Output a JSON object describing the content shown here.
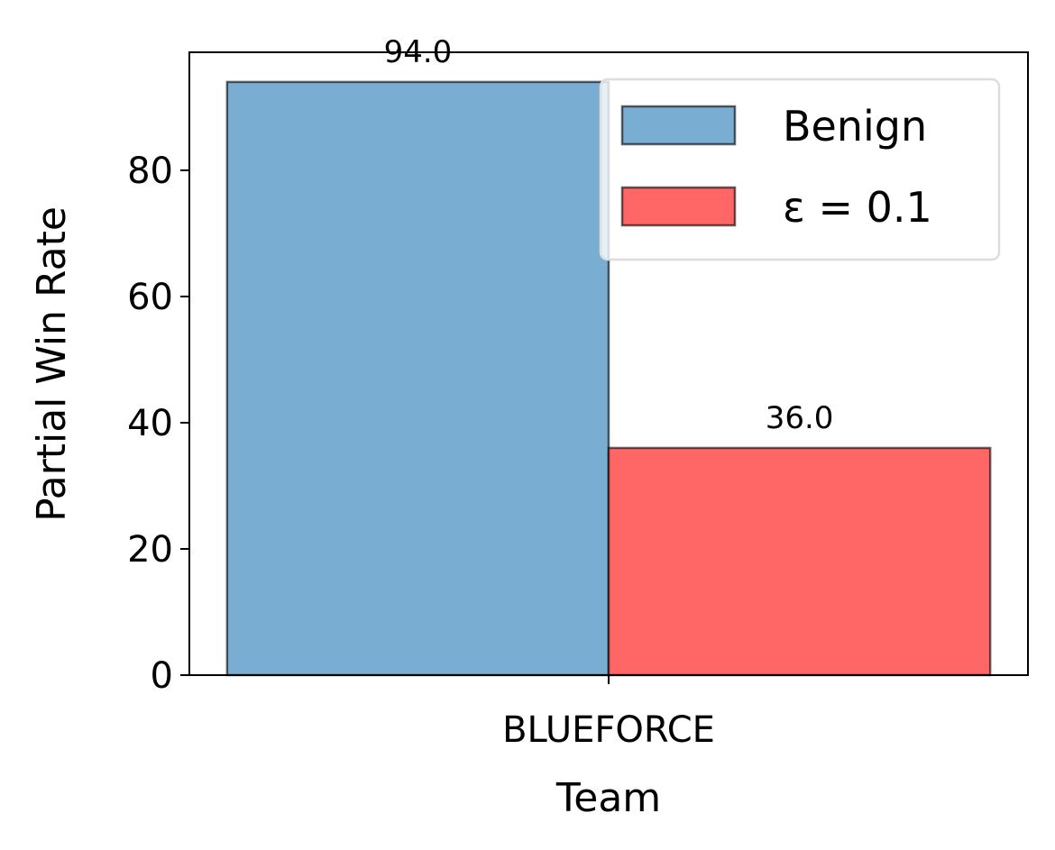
{
  "chart_data": {
    "type": "bar",
    "x_label": "Team",
    "y_label": "Partial Win Rate",
    "categories": [
      "BLUEFORCE"
    ],
    "series": [
      {
        "name": "Benign",
        "color": "#79add2",
        "values": [
          94
        ],
        "value_labels": [
          "94.0"
        ]
      },
      {
        "name": "ε = 0.1",
        "color": "#ff6666",
        "values": [
          36
        ],
        "value_labels": [
          "36.0"
        ]
      }
    ],
    "ylim": [
      0,
      98.7
    ],
    "yticks": [
      0,
      20,
      40,
      60,
      80
    ],
    "legend": "upper right"
  }
}
